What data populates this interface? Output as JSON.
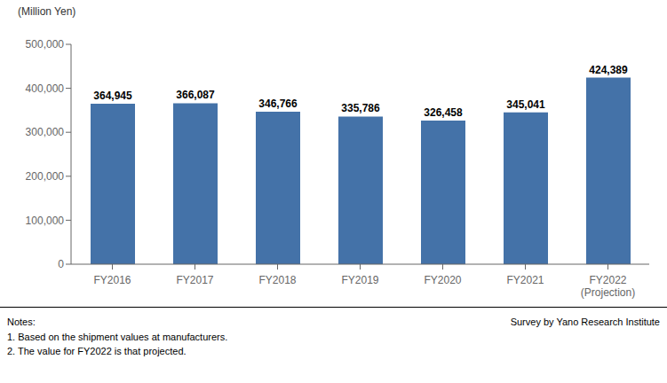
{
  "chart_data": {
    "type": "bar",
    "categories": [
      "FY2016",
      "FY2017",
      "FY2018",
      "FY2019",
      "FY2020",
      "FY2021",
      "FY2022\n(Projection)"
    ],
    "values": [
      364945,
      366087,
      346766,
      335786,
      326458,
      345041,
      424389
    ],
    "value_labels": [
      "364,945",
      "366,087",
      "346,766",
      "335,786",
      "326,458",
      "345,041",
      "424,389"
    ],
    "data_labels": true,
    "color": "#4472a8",
    "ylabel": "(Million Yen)",
    "ylim": [
      0,
      500000
    ],
    "yticks": [
      0,
      {
        "value": 100000,
        "label": "100,000"
      },
      {
        "value": 200000,
        "label": "200,000"
      },
      {
        "value": 300000,
        "label": "300,000"
      },
      {
        "value": 400000,
        "label": "400,000"
      },
      {
        "value": 500000,
        "label": "500,000"
      }
    ],
    "grid": false,
    "annotations": [
      "Notes:\n1. Based on the shipment values at manufacturers.\n2. The value for FY2022 is that projected.",
      "Survey by Yano Research Institute"
    ]
  }
}
